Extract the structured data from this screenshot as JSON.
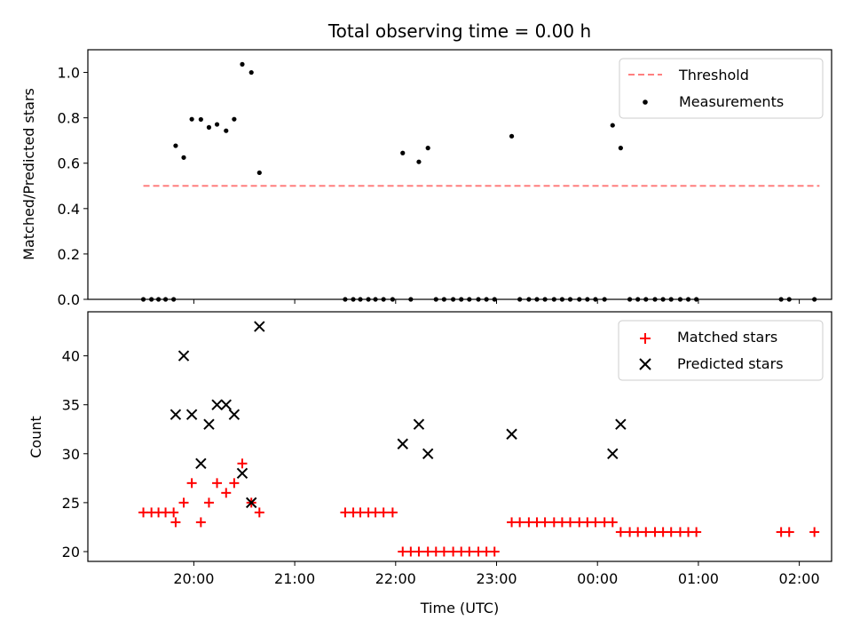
{
  "chart_data": [
    {
      "type": "scatter",
      "title": "Total observing time = 0.00 h",
      "xlabel": "",
      "ylabel": "Matched/Predicted stars",
      "ylim": [
        0.0,
        1.1
      ],
      "yticks": [
        "0.0",
        "0.2",
        "0.4",
        "0.6",
        "0.8",
        "1.0"
      ],
      "x_axis": "time (UTC), hours after 00:00 of first night; tick labels hidden on this panel (shared x axis)",
      "legend": "top-right",
      "legend_entries": [
        "Threshold",
        "Measurements"
      ],
      "threshold": {
        "name": "Threshold",
        "value": 0.5,
        "x": [
          19.5,
          26.2
        ],
        "color": "#ff7f7f"
      },
      "series": [
        {
          "name": "Measurements",
          "color": "#000000",
          "points": [
            [
              19.5,
              0
            ],
            [
              19.58,
              0
            ],
            [
              19.65,
              0
            ],
            [
              19.72,
              0
            ],
            [
              19.8,
              0
            ],
            [
              19.82,
              0.677
            ],
            [
              19.9,
              0.625
            ],
            [
              19.98,
              0.794
            ],
            [
              20.07,
              0.793
            ],
            [
              20.15,
              0.758
            ],
            [
              20.23,
              0.771
            ],
            [
              20.32,
              0.743
            ],
            [
              20.4,
              0.794
            ],
            [
              20.48,
              1.036
            ],
            [
              20.57,
              1.0
            ],
            [
              20.65,
              0.558
            ],
            [
              21.5,
              0
            ],
            [
              21.58,
              0
            ],
            [
              21.65,
              0
            ],
            [
              21.73,
              0
            ],
            [
              21.8,
              0
            ],
            [
              21.88,
              0
            ],
            [
              21.97,
              0
            ],
            [
              22.07,
              0.645
            ],
            [
              22.15,
              0
            ],
            [
              22.23,
              0.606
            ],
            [
              22.32,
              0.667
            ],
            [
              22.4,
              0
            ],
            [
              22.48,
              0
            ],
            [
              22.57,
              0
            ],
            [
              22.65,
              0
            ],
            [
              22.73,
              0
            ],
            [
              22.82,
              0
            ],
            [
              22.9,
              0
            ],
            [
              22.98,
              0
            ],
            [
              23.15,
              0.719
            ],
            [
              23.23,
              0
            ],
            [
              23.32,
              0
            ],
            [
              23.4,
              0
            ],
            [
              23.48,
              0
            ],
            [
              23.57,
              0
            ],
            [
              23.65,
              0
            ],
            [
              23.73,
              0
            ],
            [
              23.82,
              0
            ],
            [
              23.9,
              0
            ],
            [
              23.98,
              0
            ],
            [
              24.07,
              0
            ],
            [
              24.15,
              0.767
            ],
            [
              24.23,
              0.667
            ],
            [
              24.32,
              0
            ],
            [
              24.4,
              0
            ],
            [
              24.48,
              0
            ],
            [
              24.57,
              0
            ],
            [
              24.65,
              0
            ],
            [
              24.73,
              0
            ],
            [
              24.82,
              0
            ],
            [
              24.9,
              0
            ],
            [
              24.98,
              0
            ],
            [
              25.82,
              0
            ],
            [
              25.9,
              0
            ],
            [
              26.15,
              0
            ]
          ]
        }
      ]
    },
    {
      "type": "scatter",
      "title": "",
      "xlabel": "Time (UTC)",
      "ylabel": "Count",
      "xlim": [
        18.95,
        26.32
      ],
      "ylim": [
        19,
        44.5
      ],
      "yticks": [
        "20",
        "25",
        "30",
        "35",
        "40"
      ],
      "xticks": [
        {
          "x": 20,
          "label": "20:00"
        },
        {
          "x": 21,
          "label": "21:00"
        },
        {
          "x": 22,
          "label": "22:00"
        },
        {
          "x": 23,
          "label": "23:00"
        },
        {
          "x": 24,
          "label": "00:00"
        },
        {
          "x": 25,
          "label": "01:00"
        },
        {
          "x": 26,
          "label": "02:00"
        }
      ],
      "legend": "top-right",
      "legend_entries": [
        "Matched stars",
        "Predicted stars"
      ],
      "series": [
        {
          "name": "Matched stars",
          "marker": "plus",
          "color": "#ff0000",
          "points": [
            [
              19.5,
              24
            ],
            [
              19.58,
              24
            ],
            [
              19.65,
              24
            ],
            [
              19.72,
              24
            ],
            [
              19.8,
              24
            ],
            [
              19.82,
              23
            ],
            [
              19.9,
              25
            ],
            [
              19.98,
              27
            ],
            [
              20.07,
              23
            ],
            [
              20.15,
              25
            ],
            [
              20.23,
              27
            ],
            [
              20.32,
              26
            ],
            [
              20.4,
              27
            ],
            [
              20.48,
              29
            ],
            [
              20.57,
              25
            ],
            [
              20.65,
              24
            ],
            [
              21.5,
              24
            ],
            [
              21.58,
              24
            ],
            [
              21.65,
              24
            ],
            [
              21.73,
              24
            ],
            [
              21.8,
              24
            ],
            [
              21.88,
              24
            ],
            [
              21.97,
              24
            ],
            [
              22.07,
              20
            ],
            [
              22.15,
              20
            ],
            [
              22.23,
              20
            ],
            [
              22.32,
              20
            ],
            [
              22.4,
              20
            ],
            [
              22.48,
              20
            ],
            [
              22.57,
              20
            ],
            [
              22.65,
              20
            ],
            [
              22.73,
              20
            ],
            [
              22.82,
              20
            ],
            [
              22.9,
              20
            ],
            [
              22.98,
              20
            ],
            [
              23.15,
              23
            ],
            [
              23.23,
              23
            ],
            [
              23.32,
              23
            ],
            [
              23.4,
              23
            ],
            [
              23.48,
              23
            ],
            [
              23.57,
              23
            ],
            [
              23.65,
              23
            ],
            [
              23.73,
              23
            ],
            [
              23.82,
              23
            ],
            [
              23.9,
              23
            ],
            [
              23.98,
              23
            ],
            [
              24.07,
              23
            ],
            [
              24.15,
              23
            ],
            [
              24.23,
              22
            ],
            [
              24.32,
              22
            ],
            [
              24.4,
              22
            ],
            [
              24.48,
              22
            ],
            [
              24.57,
              22
            ],
            [
              24.65,
              22
            ],
            [
              24.73,
              22
            ],
            [
              24.82,
              22
            ],
            [
              24.9,
              22
            ],
            [
              24.98,
              22
            ],
            [
              25.82,
              22
            ],
            [
              25.9,
              22
            ],
            [
              26.15,
              22
            ]
          ]
        },
        {
          "name": "Predicted stars",
          "marker": "x",
          "color": "#000000",
          "points": [
            [
              19.82,
              34
            ],
            [
              19.9,
              40
            ],
            [
              19.98,
              34
            ],
            [
              20.07,
              29
            ],
            [
              20.15,
              33
            ],
            [
              20.23,
              35
            ],
            [
              20.32,
              35
            ],
            [
              20.4,
              34
            ],
            [
              20.48,
              28
            ],
            [
              20.57,
              25
            ],
            [
              20.65,
              43
            ],
            [
              22.07,
              31
            ],
            [
              22.23,
              33
            ],
            [
              22.32,
              30
            ],
            [
              23.15,
              32
            ],
            [
              24.15,
              30
            ],
            [
              24.23,
              33
            ]
          ]
        }
      ]
    }
  ]
}
